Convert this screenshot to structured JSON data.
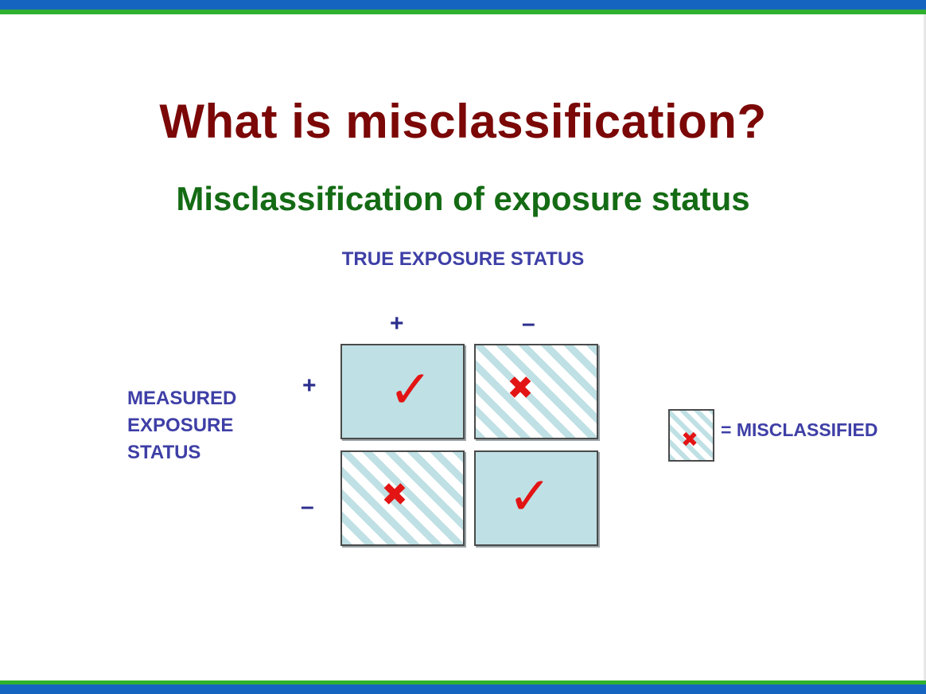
{
  "slide": {
    "title": "What is misclassification?",
    "subtitle": "Misclassification of exposure status",
    "column_axis_label": "TRUE EXPOSURE STATUS",
    "row_axis_label_lines": [
      "MEASURED",
      "EXPOSURE",
      "STATUS"
    ],
    "column_signs": [
      "+",
      "–"
    ],
    "row_signs": [
      "+",
      "–"
    ],
    "cells": [
      {
        "row": "+",
        "col": "+",
        "mark": "✓",
        "status": "correct"
      },
      {
        "row": "+",
        "col": "–",
        "mark": "✖",
        "status": "misclassified"
      },
      {
        "row": "–",
        "col": "+",
        "mark": "✖",
        "status": "misclassified"
      },
      {
        "row": "–",
        "col": "–",
        "mark": "✓",
        "status": "correct"
      }
    ],
    "legend": {
      "mark": "✖",
      "text": "= MISCLASSIFIED"
    }
  },
  "colors": {
    "title": "#7b0707",
    "subtitle": "#146b14",
    "labels": "#3e3fa6",
    "mark": "#e31414",
    "cell_fill": "#bfe0e4",
    "bar_blue": "#1565c0",
    "bar_green": "#2fb12f"
  },
  "icons": {
    "correct": "check-icon",
    "misclassified": "cross-icon"
  }
}
